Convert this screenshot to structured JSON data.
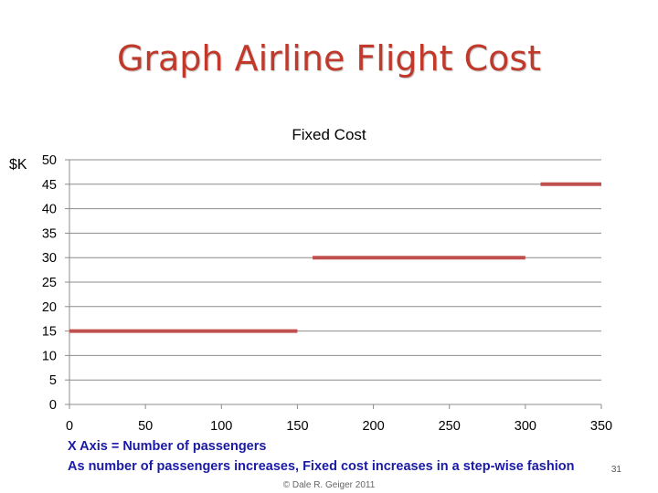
{
  "slide": {
    "title": "Graph Airline Flight Cost",
    "notes": [
      "X Axis = Number of passengers",
      "As number of passengers increases, Fixed cost increases in a step-wise fashion"
    ],
    "slide_number": "31",
    "copyright": "© Dale R. Geiger 2011"
  },
  "chart_data": {
    "type": "line",
    "title": "Fixed Cost",
    "xlabel": "",
    "ylabel": "$K",
    "xlim": [
      0,
      350
    ],
    "ylim": [
      0,
      50
    ],
    "x_ticks": [
      0,
      50,
      100,
      150,
      200,
      250,
      300,
      350
    ],
    "y_ticks": [
      0,
      5,
      10,
      15,
      20,
      25,
      30,
      35,
      40,
      45,
      50
    ],
    "grid": true,
    "legend": "none",
    "series": [
      {
        "color": "#c0504d",
        "segments": [
          {
            "x": [
              0,
              150
            ],
            "y": [
              15,
              15
            ]
          },
          {
            "x": [
              160,
              300
            ],
            "y": [
              30,
              30
            ]
          },
          {
            "x": [
              310,
              350
            ],
            "y": [
              45,
              45
            ]
          }
        ]
      }
    ]
  }
}
